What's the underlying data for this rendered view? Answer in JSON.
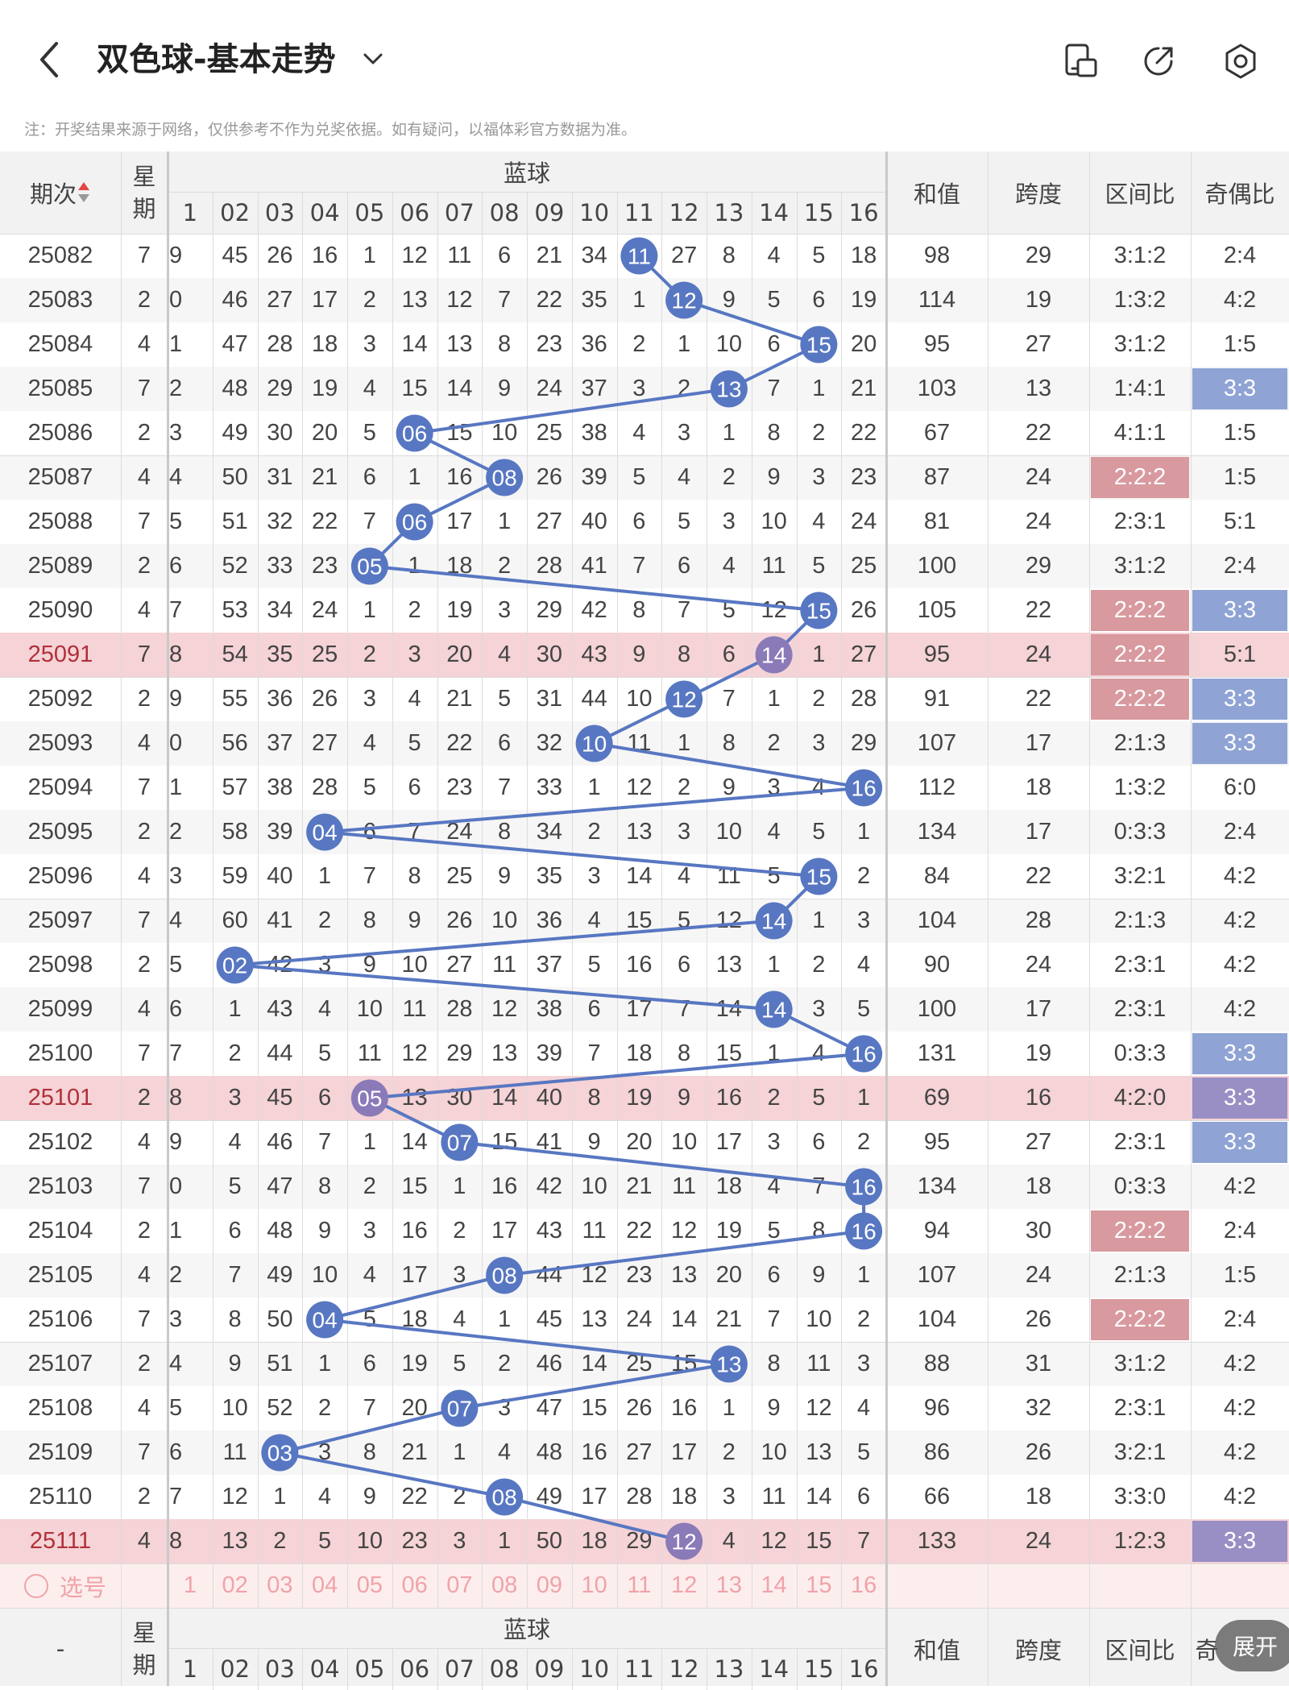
{
  "header": {
    "title": "双色球-基本走势",
    "icons": [
      "back-icon",
      "chevron-down-icon",
      "layout-toggle-icon",
      "share-icon",
      "settings-icon"
    ]
  },
  "note": "注：开奖结果来源于网络，仅供参考不作为兑奖依据。如有疑问，以福体彩官方数据为准。",
  "table": {
    "headers": {
      "period": "期次",
      "week": "星期",
      "blue": "蓝球",
      "sum": "和值",
      "span": "跨度",
      "zone_ratio": "区间比",
      "odd_even": "奇偶比"
    },
    "blue_numbers": [
      "1",
      "02",
      "03",
      "04",
      "05",
      "06",
      "07",
      "08",
      "09",
      "10",
      "11",
      "12",
      "13",
      "14",
      "15",
      "16"
    ],
    "rows": [
      {
        "period": "25082",
        "week": "7",
        "c": [
          "9",
          "45",
          "26",
          "16",
          "1",
          "12",
          "11",
          "6",
          "21",
          "34",
          "11",
          "27",
          "8",
          "4",
          "5",
          "18"
        ],
        "hit": 11,
        "sum": "98",
        "span": "29",
        "zone": "3:1:2",
        "oe": "2:4"
      },
      {
        "period": "25083",
        "week": "2",
        "c": [
          "0",
          "46",
          "27",
          "17",
          "2",
          "13",
          "12",
          "7",
          "22",
          "35",
          "1",
          "12",
          "9",
          "5",
          "6",
          "19"
        ],
        "hit": 12,
        "sum": "114",
        "span": "19",
        "zone": "1:3:2",
        "oe": "4:2"
      },
      {
        "period": "25084",
        "week": "4",
        "c": [
          "1",
          "47",
          "28",
          "18",
          "3",
          "14",
          "13",
          "8",
          "23",
          "36",
          "2",
          "1",
          "10",
          "6",
          "15",
          "20"
        ],
        "hit": 15,
        "sum": "95",
        "span": "27",
        "zone": "3:1:2",
        "oe": "1:5"
      },
      {
        "period": "25085",
        "week": "7",
        "c": [
          "2",
          "48",
          "29",
          "19",
          "4",
          "15",
          "14",
          "9",
          "24",
          "37",
          "3",
          "2",
          "13",
          "7",
          "1",
          "21"
        ],
        "hit": 13,
        "sum": "103",
        "span": "13",
        "zone": "1:4:1",
        "oe": "3:3"
      },
      {
        "period": "25086",
        "week": "2",
        "c": [
          "3",
          "49",
          "30",
          "20",
          "5",
          "06",
          "15",
          "10",
          "25",
          "38",
          "4",
          "3",
          "1",
          "8",
          "2",
          "22"
        ],
        "hit": 6,
        "sum": "67",
        "span": "22",
        "zone": "4:1:1",
        "oe": "1:5"
      },
      {
        "period": "25087",
        "week": "4",
        "c": [
          "4",
          "50",
          "31",
          "21",
          "6",
          "1",
          "16",
          "08",
          "26",
          "39",
          "5",
          "4",
          "2",
          "9",
          "3",
          "23"
        ],
        "hit": 8,
        "sum": "87",
        "span": "24",
        "zone": "2:2:2",
        "oe": "1:5"
      },
      {
        "period": "25088",
        "week": "7",
        "c": [
          "5",
          "51",
          "32",
          "22",
          "7",
          "06",
          "17",
          "1",
          "27",
          "40",
          "6",
          "5",
          "3",
          "10",
          "4",
          "24"
        ],
        "hit": 6,
        "sum": "81",
        "span": "24",
        "zone": "2:3:1",
        "oe": "5:1"
      },
      {
        "period": "25089",
        "week": "2",
        "c": [
          "6",
          "52",
          "33",
          "23",
          "05",
          "1",
          "18",
          "2",
          "28",
          "41",
          "7",
          "6",
          "4",
          "11",
          "5",
          "25"
        ],
        "hit": 5,
        "sum": "100",
        "span": "29",
        "zone": "3:1:2",
        "oe": "2:4"
      },
      {
        "period": "25090",
        "week": "4",
        "c": [
          "7",
          "53",
          "34",
          "24",
          "1",
          "2",
          "19",
          "3",
          "29",
          "42",
          "8",
          "7",
          "5",
          "12",
          "15",
          "26"
        ],
        "hit": 15,
        "sum": "105",
        "span": "22",
        "zone": "2:2:2",
        "oe": "3:3"
      },
      {
        "period": "25091",
        "week": "7",
        "c": [
          "8",
          "54",
          "35",
          "25",
          "2",
          "3",
          "20",
          "4",
          "30",
          "43",
          "9",
          "8",
          "6",
          "14",
          "1",
          "27"
        ],
        "hit": 14,
        "sum": "95",
        "span": "24",
        "zone": "2:2:2",
        "oe": "5:1"
      },
      {
        "period": "25092",
        "week": "2",
        "c": [
          "9",
          "55",
          "36",
          "26",
          "3",
          "4",
          "21",
          "5",
          "31",
          "44",
          "10",
          "12",
          "7",
          "1",
          "2",
          "28"
        ],
        "hit": 12,
        "sum": "91",
        "span": "22",
        "zone": "2:2:2",
        "oe": "3:3"
      },
      {
        "period": "25093",
        "week": "4",
        "c": [
          "0",
          "56",
          "37",
          "27",
          "4",
          "5",
          "22",
          "6",
          "32",
          "10",
          "11",
          "1",
          "8",
          "2",
          "3",
          "29"
        ],
        "hit": 10,
        "sum": "107",
        "span": "17",
        "zone": "2:1:3",
        "oe": "3:3"
      },
      {
        "period": "25094",
        "week": "7",
        "c": [
          "1",
          "57",
          "38",
          "28",
          "5",
          "6",
          "23",
          "7",
          "33",
          "1",
          "12",
          "2",
          "9",
          "3",
          "4",
          "16"
        ],
        "hit": 16,
        "sum": "112",
        "span": "18",
        "zone": "1:3:2",
        "oe": "6:0"
      },
      {
        "period": "25095",
        "week": "2",
        "c": [
          "2",
          "58",
          "39",
          "04",
          "6",
          "7",
          "24",
          "8",
          "34",
          "2",
          "13",
          "3",
          "10",
          "4",
          "5",
          "1"
        ],
        "hit": 4,
        "sum": "134",
        "span": "17",
        "zone": "0:3:3",
        "oe": "2:4"
      },
      {
        "period": "25096",
        "week": "4",
        "c": [
          "3",
          "59",
          "40",
          "1",
          "7",
          "8",
          "25",
          "9",
          "35",
          "3",
          "14",
          "4",
          "11",
          "5",
          "15",
          "2"
        ],
        "hit": 15,
        "sum": "84",
        "span": "22",
        "zone": "3:2:1",
        "oe": "4:2"
      },
      {
        "period": "25097",
        "week": "7",
        "c": [
          "4",
          "60",
          "41",
          "2",
          "8",
          "9",
          "26",
          "10",
          "36",
          "4",
          "15",
          "5",
          "12",
          "14",
          "1",
          "3"
        ],
        "hit": 14,
        "sum": "104",
        "span": "28",
        "zone": "2:1:3",
        "oe": "4:2"
      },
      {
        "period": "25098",
        "week": "2",
        "c": [
          "5",
          "02",
          "42",
          "3",
          "9",
          "10",
          "27",
          "11",
          "37",
          "5",
          "16",
          "6",
          "13",
          "1",
          "2",
          "4"
        ],
        "hit": 2,
        "sum": "90",
        "span": "24",
        "zone": "2:3:1",
        "oe": "4:2"
      },
      {
        "period": "25099",
        "week": "4",
        "c": [
          "6",
          "1",
          "43",
          "4",
          "10",
          "11",
          "28",
          "12",
          "38",
          "6",
          "17",
          "7",
          "14",
          "14",
          "3",
          "5"
        ],
        "hit": 14,
        "sum": "100",
        "span": "17",
        "zone": "2:3:1",
        "oe": "4:2"
      },
      {
        "period": "25100",
        "week": "7",
        "c": [
          "7",
          "2",
          "44",
          "5",
          "11",
          "12",
          "29",
          "13",
          "39",
          "7",
          "18",
          "8",
          "15",
          "1",
          "4",
          "16"
        ],
        "hit": 16,
        "sum": "131",
        "span": "19",
        "zone": "0:3:3",
        "oe": "3:3"
      },
      {
        "period": "25101",
        "week": "2",
        "c": [
          "8",
          "3",
          "45",
          "6",
          "05",
          "13",
          "30",
          "14",
          "40",
          "8",
          "19",
          "9",
          "16",
          "2",
          "5",
          "1"
        ],
        "hit": 5,
        "sum": "69",
        "span": "16",
        "zone": "4:2:0",
        "oe": "3:3"
      },
      {
        "period": "25102",
        "week": "4",
        "c": [
          "9",
          "4",
          "46",
          "7",
          "1",
          "14",
          "07",
          "15",
          "41",
          "9",
          "20",
          "10",
          "17",
          "3",
          "6",
          "2"
        ],
        "hit": 7,
        "sum": "95",
        "span": "27",
        "zone": "2:3:1",
        "oe": "3:3"
      },
      {
        "period": "25103",
        "week": "7",
        "c": [
          "0",
          "5",
          "47",
          "8",
          "2",
          "15",
          "1",
          "16",
          "42",
          "10",
          "21",
          "11",
          "18",
          "4",
          "7",
          "16"
        ],
        "hit": 16,
        "sum": "134",
        "span": "18",
        "zone": "0:3:3",
        "oe": "4:2"
      },
      {
        "period": "25104",
        "week": "2",
        "c": [
          "1",
          "6",
          "48",
          "9",
          "3",
          "16",
          "2",
          "17",
          "43",
          "11",
          "22",
          "12",
          "19",
          "5",
          "8",
          "16"
        ],
        "hit": 16,
        "sum": "94",
        "span": "30",
        "zone": "2:2:2",
        "oe": "2:4"
      },
      {
        "period": "25105",
        "week": "4",
        "c": [
          "2",
          "7",
          "49",
          "10",
          "4",
          "17",
          "3",
          "08",
          "44",
          "12",
          "23",
          "13",
          "20",
          "6",
          "9",
          "1"
        ],
        "hit": 8,
        "sum": "107",
        "span": "24",
        "zone": "2:1:3",
        "oe": "1:5"
      },
      {
        "period": "25106",
        "week": "7",
        "c": [
          "3",
          "8",
          "50",
          "04",
          "5",
          "18",
          "4",
          "1",
          "45",
          "13",
          "24",
          "14",
          "21",
          "7",
          "10",
          "2"
        ],
        "hit": 4,
        "sum": "104",
        "span": "26",
        "zone": "2:2:2",
        "oe": "2:4"
      },
      {
        "period": "25107",
        "week": "2",
        "c": [
          "4",
          "9",
          "51",
          "1",
          "6",
          "19",
          "5",
          "2",
          "46",
          "14",
          "25",
          "15",
          "13",
          "8",
          "11",
          "3"
        ],
        "hit": 13,
        "sum": "88",
        "span": "31",
        "zone": "3:1:2",
        "oe": "4:2"
      },
      {
        "period": "25108",
        "week": "4",
        "c": [
          "5",
          "10",
          "52",
          "2",
          "7",
          "20",
          "07",
          "3",
          "47",
          "15",
          "26",
          "16",
          "1",
          "9",
          "12",
          "4"
        ],
        "hit": 7,
        "sum": "96",
        "span": "32",
        "zone": "2:3:1",
        "oe": "4:2"
      },
      {
        "period": "25109",
        "week": "7",
        "c": [
          "6",
          "11",
          "03",
          "3",
          "8",
          "21",
          "1",
          "4",
          "48",
          "16",
          "27",
          "17",
          "2",
          "10",
          "13",
          "5"
        ],
        "hit": 3,
        "sum": "86",
        "span": "26",
        "zone": "3:2:1",
        "oe": "4:2"
      },
      {
        "period": "25110",
        "week": "2",
        "c": [
          "7",
          "12",
          "1",
          "4",
          "9",
          "22",
          "2",
          "08",
          "49",
          "17",
          "28",
          "18",
          "3",
          "11",
          "14",
          "6"
        ],
        "hit": 8,
        "sum": "66",
        "span": "18",
        "zone": "3:3:0",
        "oe": "4:2"
      },
      {
        "period": "25111",
        "week": "4",
        "c": [
          "8",
          "13",
          "2",
          "5",
          "10",
          "23",
          "3",
          "1",
          "50",
          "18",
          "29",
          "12",
          "4",
          "12",
          "15",
          "7"
        ],
        "hit": 12,
        "sum": "133",
        "span": "24",
        "zone": "1:2:3",
        "oe": "3:3"
      }
    ],
    "highlight_rows": [
      "25091",
      "25101",
      "25111"
    ],
    "zone_highlight_periods": [
      "25087",
      "25090",
      "25091",
      "25092",
      "25104",
      "25106"
    ],
    "oe_highlight_periods": [
      "25085",
      "25090",
      "25092",
      "25093",
      "25100",
      "25101",
      "25102",
      "25111"
    ],
    "select_label": "选号",
    "footer_period": "-",
    "expand_button": "展开",
    "footer_oe_partial": "奇"
  },
  "colors": {
    "ball": "#5877c2",
    "ball_highlight": "#8a7ab8",
    "row_highlight": "#f5d3d6",
    "select_row": "#fdeeee",
    "select_text": "#f0a3a8",
    "zone_highlight": "#d8999f",
    "oe_highlight": "#8fa3d4",
    "header_bg": "#f2f2f2"
  }
}
